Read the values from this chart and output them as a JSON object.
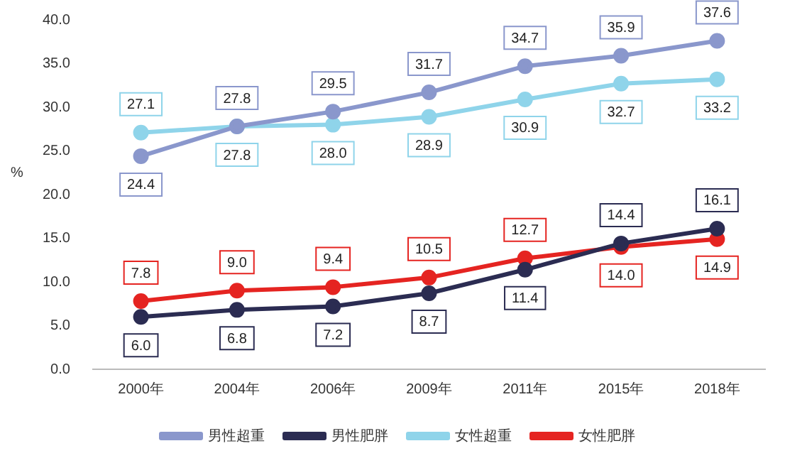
{
  "chart_data": {
    "type": "line",
    "ylabel": "%",
    "categories": [
      "2000年",
      "2004年",
      "2006年",
      "2009年",
      "2011年",
      "2015年",
      "2018年"
    ],
    "series": [
      {
        "name": "男性超重",
        "color": "#8a97cc",
        "values": [
          24.4,
          27.8,
          29.5,
          31.7,
          34.7,
          35.9,
          37.6
        ],
        "value_labels": [
          "24.4",
          "27.8",
          "29.5",
          "31.7",
          "34.7",
          "35.9",
          "37.6"
        ]
      },
      {
        "name": "男性肥胖",
        "color": "#2b2c52",
        "values": [
          6.0,
          6.8,
          7.2,
          8.7,
          11.4,
          14.4,
          16.1
        ],
        "value_labels": [
          "6.0",
          "6.8",
          "7.2",
          "8.7",
          "11.4",
          "14.4",
          "16.1"
        ]
      },
      {
        "name": "女性超重",
        "color": "#8fd4ea",
        "values": [
          27.1,
          27.8,
          28.0,
          28.9,
          30.9,
          32.7,
          33.2
        ],
        "value_labels": [
          "27.1",
          "27.8",
          "28.0",
          "28.9",
          "30.9",
          "32.7",
          "33.2"
        ]
      },
      {
        "name": "女性肥胖",
        "color": "#e52421",
        "values": [
          7.8,
          9.0,
          9.4,
          10.5,
          12.7,
          14.0,
          14.9
        ],
        "value_labels": [
          "7.8",
          "9.0",
          "9.4",
          "10.5",
          "12.7",
          "14.0",
          "14.9"
        ]
      }
    ],
    "ylim": [
      0,
      40
    ],
    "yticks": [
      {
        "value": 0,
        "label": "0.0"
      },
      {
        "value": 5,
        "label": "5.0"
      },
      {
        "value": 10,
        "label": "10.0"
      },
      {
        "value": 15,
        "label": "15.0"
      },
      {
        "value": 20,
        "label": "20.0"
      },
      {
        "value": 25,
        "label": "25.0"
      },
      {
        "value": 30,
        "label": "30.0"
      },
      {
        "value": 35,
        "label": "35.0"
      },
      {
        "value": 40,
        "label": "40.0"
      }
    ],
    "grid": false,
    "legend": "bottom",
    "marker": "circle",
    "line_style": "solid"
  }
}
